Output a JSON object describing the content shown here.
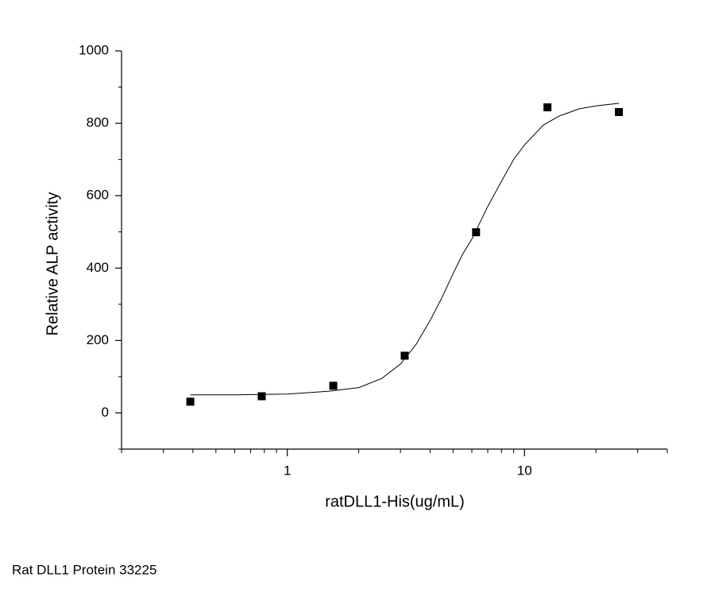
{
  "chart_data": {
    "type": "scatter",
    "xlabel": "ratDLL1-His(ug/mL)",
    "ylabel": "Relative ALP activity",
    "caption": "Rat DLL1 Protein 33225",
    "xscale": "log",
    "xlim": [
      0.2,
      40
    ],
    "ylim": [
      -100,
      1000
    ],
    "xticks": [
      1,
      10
    ],
    "xminorticks": [
      0.2,
      0.3,
      0.4,
      0.5,
      0.6,
      0.7,
      0.8,
      0.9,
      2,
      3,
      4,
      5,
      6,
      7,
      8,
      9,
      20,
      30,
      40
    ],
    "yticks": [
      0,
      200,
      400,
      600,
      800,
      1000
    ],
    "yminorticks": [
      -100,
      100,
      300,
      500,
      700,
      900
    ],
    "series": [
      {
        "color": "#000000",
        "x": [
          0.39,
          0.78,
          1.5625,
          3.125,
          6.25,
          12.5,
          25
        ],
        "values": [
          31,
          46,
          75,
          158,
          499,
          844,
          831
        ]
      }
    ],
    "fit": {
      "color": "#000000",
      "x": [
        0.39,
        0.6,
        1,
        1.5,
        2,
        2.5,
        3,
        3.5,
        4,
        4.5,
        5,
        5.5,
        6,
        7,
        8,
        9,
        10,
        12,
        14,
        17,
        20,
        25
      ],
      "values": [
        50,
        50,
        52,
        60,
        70,
        95,
        135,
        190,
        255,
        320,
        385,
        440,
        480,
        570,
        640,
        700,
        740,
        795,
        820,
        840,
        848,
        855
      ]
    }
  }
}
